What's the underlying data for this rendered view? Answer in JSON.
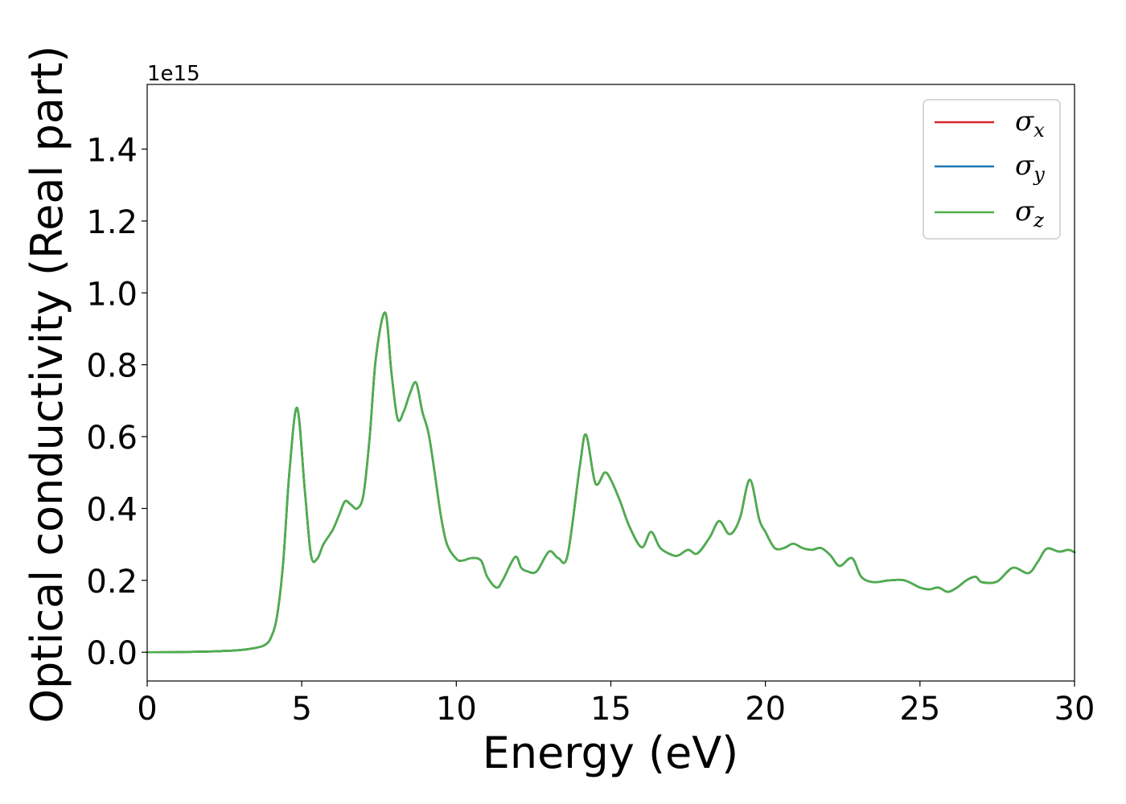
{
  "chart_data": {
    "type": "line",
    "xlabel": "Energy (eV)",
    "ylabel": "Optical conductivity (Real part)",
    "y_offset_text": "1e15",
    "xlim": [
      0,
      30
    ],
    "ylim": [
      -0.08,
      1.58
    ],
    "x_ticks": [
      0,
      5,
      10,
      15,
      20,
      25,
      30
    ],
    "x_tick_labels": [
      "0",
      "5",
      "10",
      "15",
      "20",
      "25",
      "30"
    ],
    "y_ticks": [
      0.0,
      0.2,
      0.4,
      0.6,
      0.8,
      1.0,
      1.2,
      1.4
    ],
    "y_tick_labels": [
      "0.0",
      "0.2",
      "0.4",
      "0.6",
      "0.8",
      "1.0",
      "1.2",
      "1.4"
    ],
    "grid": false,
    "legend_position": "top-right",
    "x": [
      0,
      1,
      2,
      3,
      3.5,
      3.8,
      4.0,
      4.2,
      4.4,
      4.6,
      4.85,
      5.1,
      5.3,
      5.5,
      5.7,
      6.0,
      6.2,
      6.4,
      6.6,
      6.8,
      7.0,
      7.2,
      7.4,
      7.7,
      7.9,
      8.1,
      8.3,
      8.5,
      8.7,
      8.9,
      9.1,
      9.3,
      9.5,
      9.7,
      10.0,
      10.2,
      10.5,
      10.8,
      11.0,
      11.3,
      11.5,
      11.9,
      12.1,
      12.3,
      12.6,
      13.0,
      13.3,
      13.6,
      14.0,
      14.2,
      14.5,
      14.8,
      15.0,
      15.3,
      15.6,
      16.0,
      16.3,
      16.6,
      17.0,
      17.2,
      17.5,
      17.8,
      18.2,
      18.5,
      18.8,
      19.0,
      19.2,
      19.5,
      19.8,
      20.0,
      20.3,
      20.6,
      20.9,
      21.2,
      21.5,
      21.8,
      22.1,
      22.4,
      22.8,
      23.1,
      23.5,
      24.0,
      24.5,
      25.0,
      25.3,
      25.6,
      25.9,
      26.2,
      26.5,
      26.8,
      27.0,
      27.5,
      28.0,
      28.5,
      28.8,
      29.1,
      29.5,
      29.8,
      30.0
    ],
    "series": [
      {
        "name": "σx",
        "color": "#d62728",
        "values": [
          0,
          0.0005,
          0.002,
          0.006,
          0.012,
          0.02,
          0.04,
          0.1,
          0.25,
          0.5,
          0.68,
          0.45,
          0.27,
          0.26,
          0.3,
          0.34,
          0.38,
          0.42,
          0.41,
          0.4,
          0.44,
          0.6,
          0.82,
          0.945,
          0.78,
          0.65,
          0.67,
          0.72,
          0.75,
          0.67,
          0.61,
          0.5,
          0.38,
          0.3,
          0.26,
          0.255,
          0.262,
          0.255,
          0.21,
          0.18,
          0.2,
          0.265,
          0.235,
          0.225,
          0.225,
          0.28,
          0.262,
          0.27,
          0.52,
          0.605,
          0.47,
          0.5,
          0.48,
          0.42,
          0.35,
          0.292,
          0.335,
          0.29,
          0.27,
          0.27,
          0.285,
          0.275,
          0.32,
          0.365,
          0.33,
          0.34,
          0.38,
          0.48,
          0.37,
          0.335,
          0.29,
          0.29,
          0.302,
          0.29,
          0.285,
          0.29,
          0.27,
          0.24,
          0.262,
          0.21,
          0.195,
          0.2,
          0.2,
          0.18,
          0.175,
          0.18,
          0.168,
          0.18,
          0.2,
          0.21,
          0.195,
          0.197,
          0.235,
          0.22,
          0.25,
          0.288,
          0.28,
          0.285,
          0.278
        ]
      },
      {
        "name": "σy",
        "color": "#1f77b4",
        "values": [
          0,
          0.0005,
          0.002,
          0.006,
          0.012,
          0.02,
          0.04,
          0.1,
          0.25,
          0.5,
          0.68,
          0.45,
          0.27,
          0.26,
          0.3,
          0.34,
          0.38,
          0.42,
          0.41,
          0.4,
          0.44,
          0.6,
          0.82,
          0.945,
          0.78,
          0.65,
          0.67,
          0.72,
          0.75,
          0.67,
          0.61,
          0.5,
          0.38,
          0.3,
          0.26,
          0.255,
          0.262,
          0.255,
          0.21,
          0.18,
          0.2,
          0.265,
          0.235,
          0.225,
          0.225,
          0.28,
          0.262,
          0.27,
          0.52,
          0.605,
          0.47,
          0.5,
          0.48,
          0.42,
          0.35,
          0.292,
          0.335,
          0.29,
          0.27,
          0.27,
          0.285,
          0.275,
          0.32,
          0.365,
          0.33,
          0.34,
          0.38,
          0.48,
          0.37,
          0.335,
          0.29,
          0.29,
          0.302,
          0.29,
          0.285,
          0.29,
          0.27,
          0.24,
          0.262,
          0.21,
          0.195,
          0.2,
          0.2,
          0.18,
          0.175,
          0.18,
          0.168,
          0.18,
          0.2,
          0.21,
          0.195,
          0.197,
          0.235,
          0.22,
          0.25,
          0.288,
          0.28,
          0.285,
          0.278
        ]
      },
      {
        "name": "σz",
        "color": "#4daf4a",
        "values": [
          0,
          0.0005,
          0.002,
          0.006,
          0.012,
          0.02,
          0.04,
          0.1,
          0.25,
          0.5,
          0.68,
          0.45,
          0.27,
          0.26,
          0.3,
          0.34,
          0.38,
          0.42,
          0.41,
          0.4,
          0.44,
          0.6,
          0.82,
          0.945,
          0.78,
          0.65,
          0.67,
          0.72,
          0.75,
          0.67,
          0.61,
          0.5,
          0.38,
          0.3,
          0.26,
          0.255,
          0.262,
          0.255,
          0.21,
          0.18,
          0.2,
          0.265,
          0.235,
          0.225,
          0.225,
          0.28,
          0.262,
          0.27,
          0.52,
          0.605,
          0.47,
          0.5,
          0.48,
          0.42,
          0.35,
          0.292,
          0.335,
          0.29,
          0.27,
          0.27,
          0.285,
          0.275,
          0.32,
          0.365,
          0.33,
          0.34,
          0.38,
          0.48,
          0.37,
          0.335,
          0.29,
          0.29,
          0.302,
          0.29,
          0.285,
          0.29,
          0.27,
          0.24,
          0.262,
          0.21,
          0.195,
          0.2,
          0.2,
          0.18,
          0.175,
          0.18,
          0.168,
          0.18,
          0.2,
          0.21,
          0.195,
          0.197,
          0.235,
          0.22,
          0.25,
          0.288,
          0.28,
          0.285,
          0.278
        ]
      }
    ],
    "legend": [
      {
        "symbol": "σ",
        "sub": "x",
        "color": "#d62728"
      },
      {
        "symbol": "σ",
        "sub": "y",
        "color": "#1f77b4"
      },
      {
        "symbol": "σ",
        "sub": "z",
        "color": "#4daf4a"
      }
    ]
  }
}
